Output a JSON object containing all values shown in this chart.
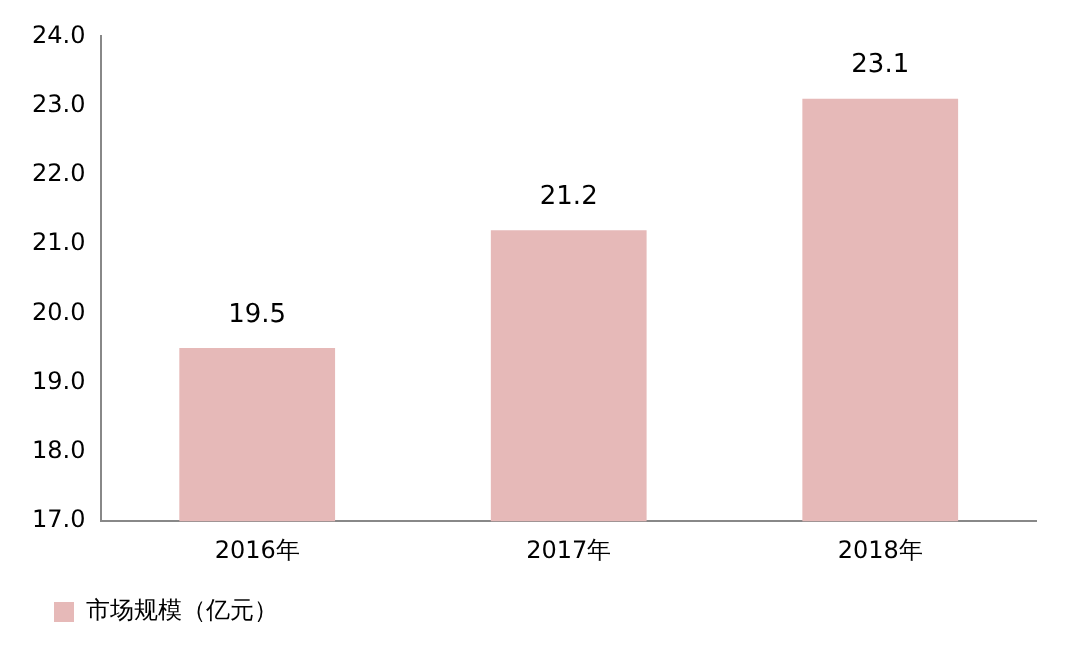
{
  "chart_data": {
    "type": "bar",
    "categories": [
      "2016年",
      "2017年",
      "2018年"
    ],
    "series": [
      {
        "name": "市场规模（亿元）",
        "color": "#e6b9b8",
        "values": [
          19.5,
          21.2,
          23.1
        ]
      }
    ],
    "ylim": [
      17,
      24
    ],
    "yticks": [
      {
        "value": 17,
        "label": "17.0"
      },
      {
        "value": 18,
        "label": "18.0"
      },
      {
        "value": 19,
        "label": "19.0"
      },
      {
        "value": 20,
        "label": "20.0"
      },
      {
        "value": 21,
        "label": "21.0"
      },
      {
        "value": 22,
        "label": "22.0"
      },
      {
        "value": 23,
        "label": "23.0"
      },
      {
        "value": 24,
        "label": "24.0"
      }
    ],
    "data_labels": true,
    "grid": false,
    "legend": "bottom"
  }
}
